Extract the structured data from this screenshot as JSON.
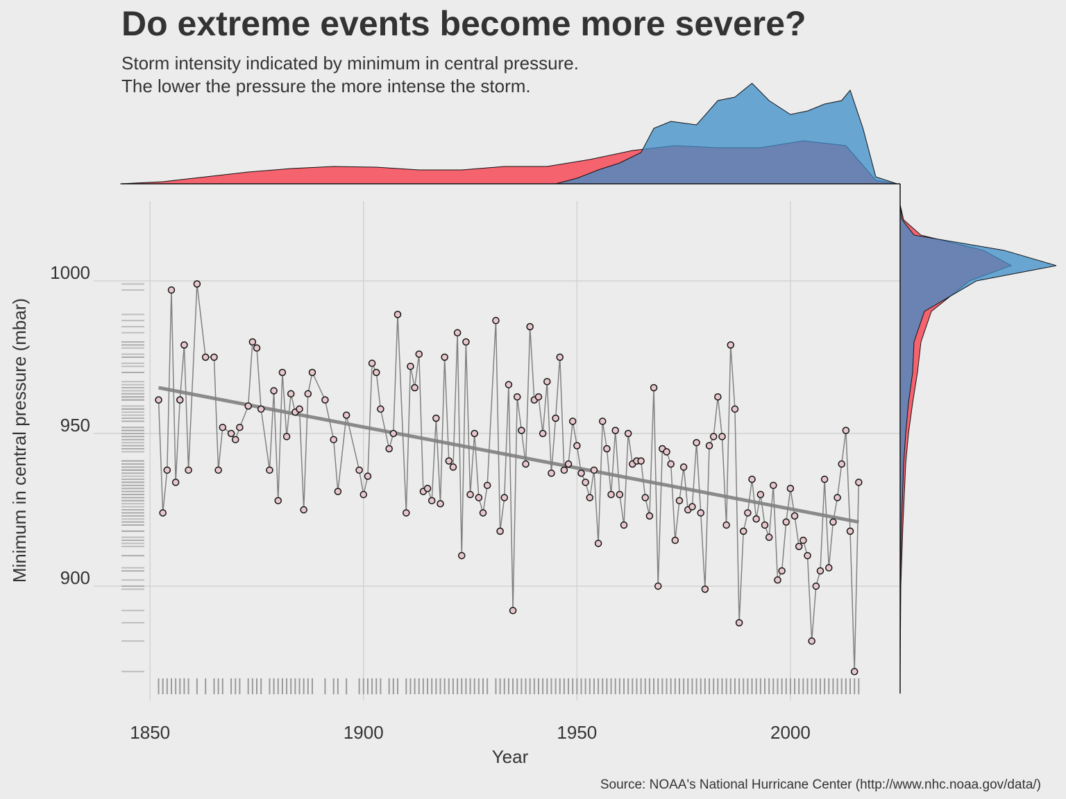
{
  "chart_data": {
    "type": "scatter",
    "title": "Do extreme events become more severe?",
    "subtitle_lines": [
      "Storm intensity indicated by minimum in central pressure.",
      "The lower the pressure the more intense the storm."
    ],
    "x_label": "Year",
    "y_label": "Minimum in central pressure (mbar)",
    "source": "Source: NOAA's National Hurricane Center (http://www.nhc.noaa.gov/data/)",
    "xlim": [
      1843.3,
      2025.7
    ],
    "ylim": [
      864.8,
      1031.8
    ],
    "xticks": [
      1850,
      1900,
      1950,
      2000
    ],
    "yticks": [
      900,
      950,
      1000
    ],
    "grid": true,
    "series": [
      {
        "color": "#808080",
        "x": [
          1852,
          1853,
          1854,
          1855,
          1856,
          1857,
          1858,
          1859,
          1861,
          1863,
          1865,
          1866,
          1867,
          1869,
          1870,
          1871,
          1873,
          1874,
          1875,
          1876,
          1878,
          1879,
          1880,
          1881,
          1882,
          1883,
          1884,
          1885,
          1886,
          1887,
          1888,
          1891,
          1893,
          1894,
          1896,
          1899,
          1900,
          1901,
          1902,
          1903,
          1904,
          1906,
          1907,
          1908,
          1910,
          1911,
          1912,
          1913,
          1914,
          1915,
          1916,
          1917,
          1918,
          1919,
          1920,
          1921,
          1922,
          1923,
          1924,
          1925,
          1926,
          1927,
          1928,
          1929,
          1931,
          1932,
          1933,
          1934,
          1935,
          1936,
          1937,
          1938,
          1939,
          1940,
          1941,
          1942,
          1943,
          1944,
          1945,
          1946,
          1947,
          1948,
          1949,
          1950,
          1951,
          1952,
          1953,
          1954,
          1955,
          1956,
          1957,
          1958,
          1959,
          1960,
          1961,
          1962,
          1963,
          1964,
          1965,
          1966,
          1967,
          1968,
          1969,
          1970,
          1971,
          1972,
          1973,
          1974,
          1975,
          1976,
          1977,
          1978,
          1979,
          1980,
          1981,
          1982,
          1983,
          1984,
          1985,
          1986,
          1987,
          1988,
          1989,
          1990,
          1991,
          1992,
          1993,
          1994,
          1995,
          1996,
          1997,
          1998,
          1999,
          2000,
          2001,
          2002,
          2003,
          2004,
          2005,
          2006,
          2007,
          2008,
          2009,
          2010,
          2011,
          2012,
          2013,
          2014,
          2015,
          2016
        ],
        "values": [
          961,
          924,
          938,
          997,
          934,
          961,
          979,
          938,
          999,
          975,
          975,
          938,
          952,
          950,
          948,
          952,
          959,
          980,
          978,
          958,
          938,
          964,
          928,
          970,
          949,
          963,
          957,
          958,
          925,
          963,
          970,
          961,
          948,
          931,
          956,
          938,
          930,
          936,
          973,
          970,
          958,
          945,
          950,
          989,
          924,
          972,
          965,
          976,
          931,
          932,
          928,
          955,
          927,
          975,
          941,
          939,
          983,
          910,
          980,
          930,
          950,
          929,
          924,
          933,
          987,
          918,
          929,
          966,
          892,
          962,
          951,
          940,
          985,
          961,
          962,
          950,
          967,
          937,
          955,
          975,
          938,
          940,
          954,
          946,
          937,
          934,
          929,
          938,
          914,
          954,
          945,
          930,
          951,
          930,
          920,
          950,
          940,
          941,
          941,
          929,
          923,
          965,
          900,
          945,
          944,
          940,
          915,
          928,
          939,
          925,
          926,
          947,
          924,
          899,
          946,
          949,
          962,
          949,
          920,
          979,
          958,
          888,
          918,
          924,
          935,
          922,
          930,
          920,
          916,
          933,
          902,
          905,
          921,
          932,
          923,
          913,
          915,
          910,
          882,
          900,
          905,
          935,
          906,
          921,
          929,
          940,
          951,
          918,
          872,
          934
        ]
      },
      {
        "color": "#8a8a8a",
        "x": [
          1852,
          2016
        ],
        "values": [
          965,
          921
        ]
      }
    ],
    "marginal_x": {
      "x": [
        1843,
        1853,
        1863,
        1873,
        1883,
        1893,
        1903,
        1913,
        1923,
        1933,
        1943,
        1953,
        1963,
        1973,
        1983,
        1993,
        2003,
        2013,
        2020,
        2025
      ],
      "series": [
        {
          "color": "#f5636f",
          "values": [
            0,
            3,
            10,
            17,
            22,
            25,
            24,
            20,
            20,
            25,
            25,
            35,
            48,
            55,
            52,
            52,
            62,
            55,
            5,
            0
          ]
        },
        {
          "color": "#3c8ec8",
          "x": [
            1945,
            1950,
            1955,
            1960,
            1965,
            1968,
            1972,
            1978,
            1983,
            1987,
            1991,
            1995,
            2000,
            2004,
            2008,
            2012,
            2014,
            2017,
            2020,
            2025
          ],
          "values": [
            0,
            8,
            20,
            30,
            45,
            80,
            90,
            85,
            120,
            125,
            145,
            120,
            100,
            105,
            115,
            120,
            135,
            80,
            10,
            0
          ]
        }
      ]
    },
    "marginal_y": {
      "y": [
        870,
        900,
        920,
        940,
        950,
        960,
        970,
        980,
        990,
        1000,
        1005,
        1010,
        1015,
        1020,
        1025
      ],
      "series": [
        {
          "color": "#f5636f",
          "values": [
            0,
            1,
            4,
            8,
            12,
            18,
            25,
            30,
            45,
            100,
            160,
            120,
            30,
            5,
            0
          ]
        },
        {
          "color": "#3c8ec8",
          "values": [
            0,
            0,
            2,
            5,
            8,
            12,
            18,
            20,
            35,
            110,
            225,
            150,
            20,
            3,
            0
          ]
        }
      ]
    }
  }
}
